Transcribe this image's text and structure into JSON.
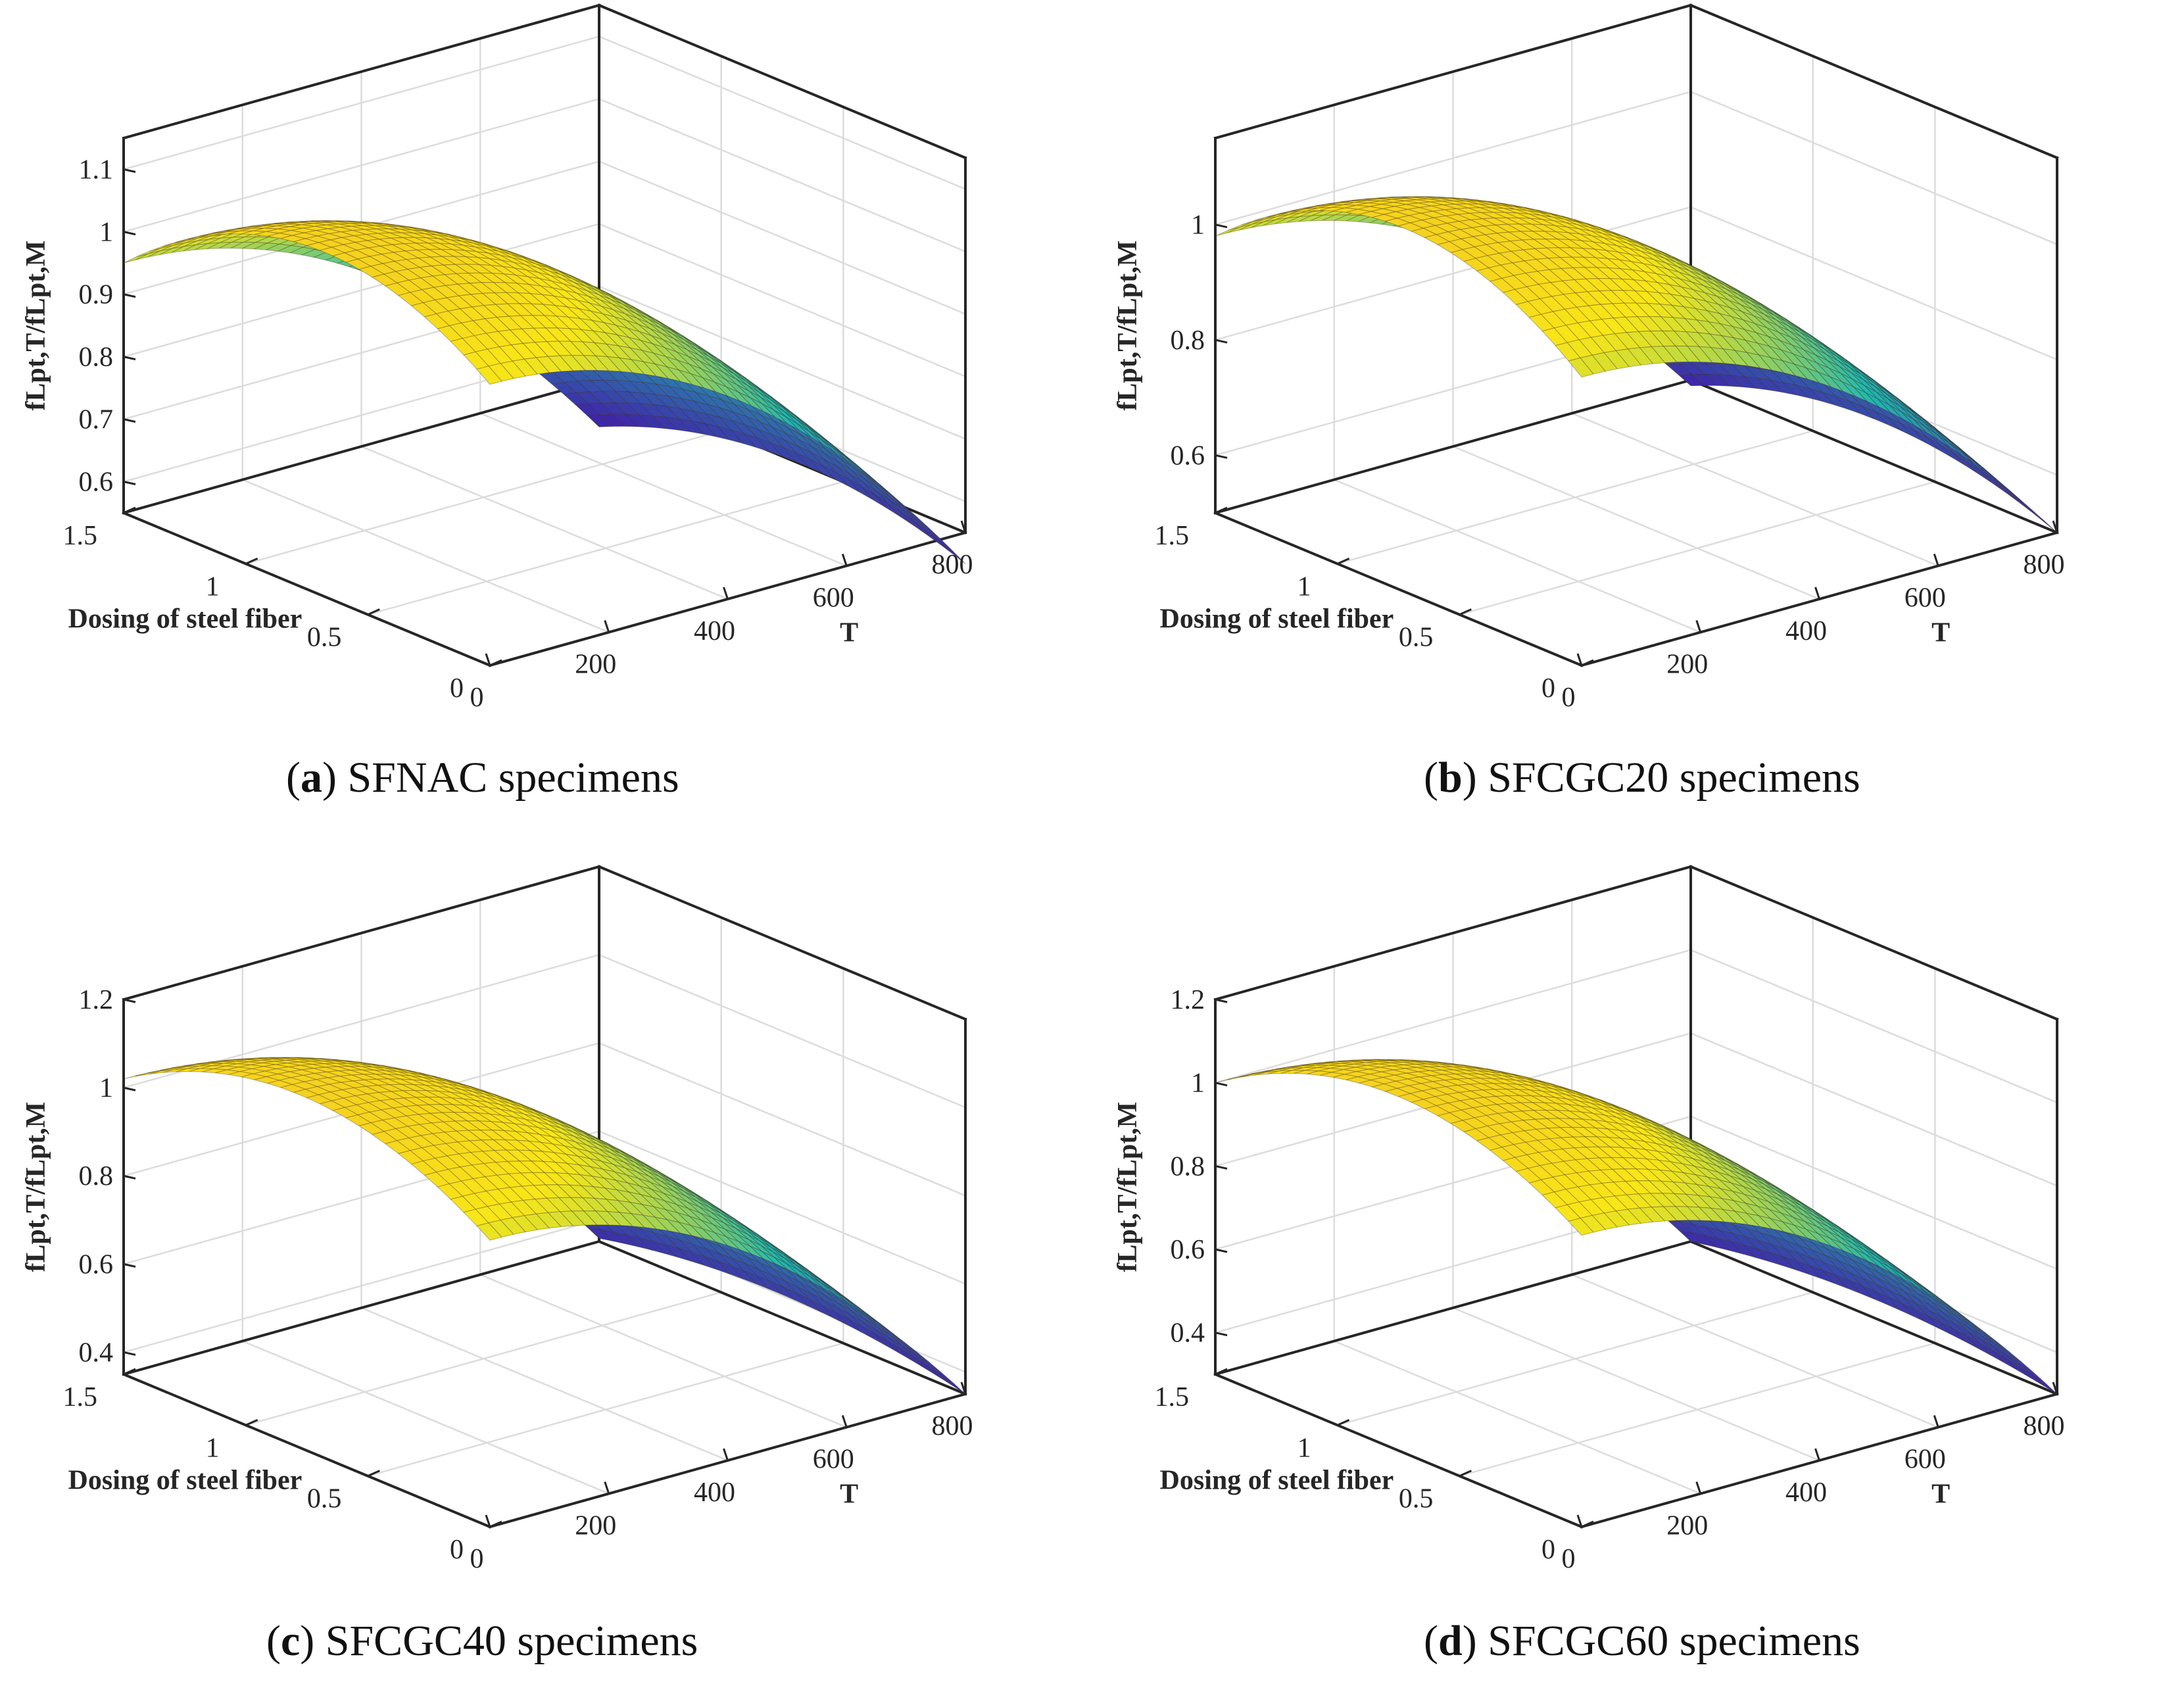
{
  "figure": {
    "panels": [
      {
        "letter": "a",
        "caption": "SFNAC specimens"
      },
      {
        "letter": "b",
        "caption": "SFCGC20 specimens"
      },
      {
        "letter": "c",
        "caption": "SFCGC40 specimens"
      },
      {
        "letter": "d",
        "caption": "SFCGC60 specimens"
      }
    ]
  },
  "colors": {
    "axis": "#262626",
    "grid": "#dcdcdc",
    "surface_low": "#3e26a8",
    "surface_mid": "#1fb8b1",
    "surface_high": "#f9e617",
    "surface_top": "#f5d21e"
  },
  "chart_data": [
    {
      "type": "surface",
      "title": "(a) SFNAC specimens",
      "xlabel": "T",
      "ylabel": "Dosing of steel fiber",
      "zlabel": "fLpt,T/fLpt,M",
      "x_ticks": [
        "0",
        "200",
        "400",
        "600",
        "800"
      ],
      "y_ticks": [
        "0",
        "0.5",
        "1",
        "1.5"
      ],
      "z_ticks": [
        "0.6",
        "0.7",
        "0.8",
        "0.9",
        "1",
        "1.1"
      ],
      "xlim": [
        0,
        800
      ],
      "ylim": [
        0,
        1.5
      ],
      "zlim": [
        0.55,
        1.15
      ],
      "surface": {
        "z_at_T0": 1.0,
        "z_at_T800": 0.5,
        "z_at_d0": 1.0,
        "z_at_d0_75": 1.1,
        "z_at_d1_5": 0.95
      }
    },
    {
      "type": "surface",
      "title": "(b) SFCGC20 specimens",
      "xlabel": "T",
      "ylabel": "Dosing of steel fiber",
      "zlabel": "fLpt,T/fLpt,M",
      "x_ticks": [
        "0",
        "200",
        "400",
        "600",
        "800"
      ],
      "y_ticks": [
        "0",
        "0.5",
        "1",
        "1.5"
      ],
      "z_ticks": [
        "0.6",
        "0.8",
        "1"
      ],
      "xlim": [
        0,
        800
      ],
      "ylim": [
        0,
        1.5
      ],
      "zlim": [
        0.5,
        1.15
      ],
      "surface": {
        "z_at_T0": 1.0,
        "z_at_T800": 0.5,
        "z_at_d0": 1.0,
        "z_at_d0_75": 1.13,
        "z_at_d1_5": 0.98
      }
    },
    {
      "type": "surface",
      "title": "(c) SFCGC40 specimens",
      "xlabel": "T",
      "ylabel": "Dosing of steel fiber",
      "zlabel": "fLpt,T/fLpt,M",
      "x_ticks": [
        "0",
        "200",
        "400",
        "600",
        "800"
      ],
      "y_ticks": [
        "0",
        "0.5",
        "1",
        "1.5"
      ],
      "z_ticks": [
        "0.4",
        "0.6",
        "0.8",
        "1",
        "1.2"
      ],
      "xlim": [
        0,
        800
      ],
      "ylim": [
        0,
        1.5
      ],
      "zlim": [
        0.35,
        1.2
      ],
      "surface": {
        "z_at_T0": 1.0,
        "z_at_T800": 0.35,
        "z_at_d0": 1.0,
        "z_at_d0_75": 1.15,
        "z_at_d1_5": 1.02
      }
    },
    {
      "type": "surface",
      "title": "(d) SFCGC60 specimens",
      "xlabel": "T",
      "ylabel": "Dosing of steel fiber",
      "zlabel": "fLpt,T/fLpt,M",
      "x_ticks": [
        "0",
        "200",
        "400",
        "600",
        "800"
      ],
      "y_ticks": [
        "0",
        "0.5",
        "1",
        "1.5"
      ],
      "z_ticks": [
        "0.4",
        "0.6",
        "0.8",
        "1",
        "1.2"
      ],
      "xlim": [
        0,
        800
      ],
      "ylim": [
        0,
        1.5
      ],
      "zlim": [
        0.3,
        1.2
      ],
      "surface": {
        "z_at_T0": 1.0,
        "z_at_T800": 0.3,
        "z_at_d0": 1.0,
        "z_at_d0_75": 1.15,
        "z_at_d1_5": 1.0
      }
    }
  ]
}
